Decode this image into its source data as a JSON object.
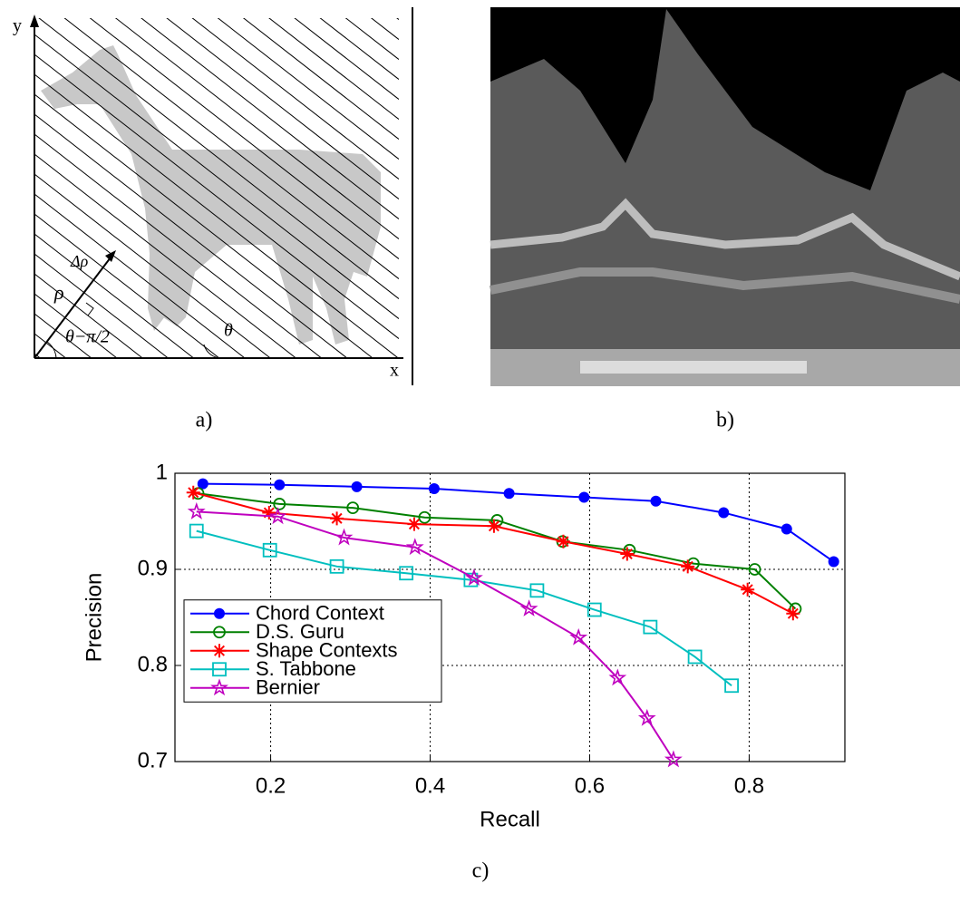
{
  "panel_a": {
    "label": "a)",
    "y_axis": "y",
    "x_axis": "x",
    "delta_rho": "Δρ",
    "rho": "ρ",
    "angle": "θ−π/2",
    "theta": "θ"
  },
  "panel_b": {
    "label": "b)"
  },
  "panel_c": {
    "label": "c)"
  },
  "chart_data": {
    "type": "line",
    "x_label": "Recall",
    "y_label": "Precision",
    "xlim": [
      0.08,
      0.92
    ],
    "ylim": [
      0.7,
      1
    ],
    "xticks": [
      0.2,
      0.4,
      0.6,
      0.8
    ],
    "yticks": [
      0.7,
      0.8,
      0.9,
      1
    ],
    "grid": true,
    "legend": "center left",
    "series": [
      {
        "name": "Chord Context",
        "color": "#0000ff",
        "marker": "filled-circle",
        "x": [
          0.115,
          0.211,
          0.308,
          0.405,
          0.499,
          0.593,
          0.683,
          0.768,
          0.847,
          0.906
        ],
        "values": [
          0.989,
          0.988,
          0.986,
          0.984,
          0.979,
          0.975,
          0.971,
          0.959,
          0.942,
          0.908
        ]
      },
      {
        "name": "D.S. Guru",
        "color": "#008000",
        "marker": "circle",
        "x": [
          0.109,
          0.211,
          0.303,
          0.393,
          0.484,
          0.566,
          0.65,
          0.73,
          0.807,
          0.858
        ],
        "values": [
          0.979,
          0.968,
          0.964,
          0.954,
          0.951,
          0.929,
          0.92,
          0.906,
          0.9,
          0.859
        ]
      },
      {
        "name": "Shape Contexts",
        "color": "#ff0000",
        "marker": "asterisk",
        "x": [
          0.103,
          0.198,
          0.283,
          0.38,
          0.48,
          0.567,
          0.647,
          0.723,
          0.798,
          0.855
        ],
        "values": [
          0.98,
          0.959,
          0.953,
          0.947,
          0.945,
          0.929,
          0.916,
          0.903,
          0.879,
          0.854
        ]
      },
      {
        "name": "S. Tabbone",
        "color": "#00bfbf",
        "marker": "square",
        "x": [
          0.107,
          0.199,
          0.283,
          0.37,
          0.451,
          0.534,
          0.606,
          0.676,
          0.732,
          0.778
        ],
        "values": [
          0.94,
          0.92,
          0.903,
          0.896,
          0.889,
          0.878,
          0.858,
          0.84,
          0.809,
          0.779
        ]
      },
      {
        "name": "Bernier",
        "color": "#bf00bf",
        "marker": "star",
        "x": [
          0.107,
          0.209,
          0.292,
          0.381,
          0.455,
          0.524,
          0.586,
          0.635,
          0.672,
          0.705
        ],
        "values": [
          0.96,
          0.955,
          0.933,
          0.923,
          0.891,
          0.859,
          0.829,
          0.787,
          0.745,
          0.702
        ]
      }
    ]
  }
}
